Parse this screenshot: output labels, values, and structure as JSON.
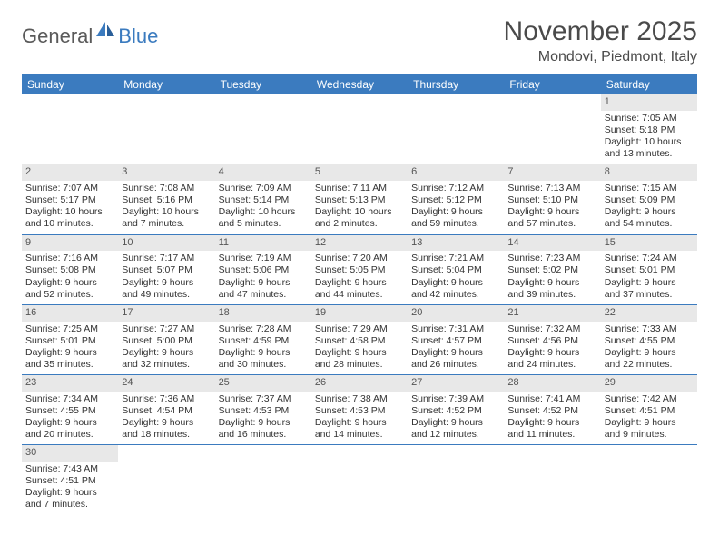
{
  "logo": {
    "text1": "General",
    "text2": "Blue"
  },
  "title": "November 2025",
  "location": "Mondovi, Piedmont, Italy",
  "colors": {
    "header_bg": "#3b7bbf",
    "header_text": "#ffffff",
    "daynum_bg": "#e8e8e8",
    "daynum_text": "#555555",
    "body_text": "#333333",
    "title_text": "#4a4a4a"
  },
  "weekdays": [
    "Sunday",
    "Monday",
    "Tuesday",
    "Wednesday",
    "Thursday",
    "Friday",
    "Saturday"
  ],
  "weeks": [
    [
      {
        "empty": true
      },
      {
        "empty": true
      },
      {
        "empty": true
      },
      {
        "empty": true
      },
      {
        "empty": true
      },
      {
        "empty": true
      },
      {
        "day": "1",
        "sunrise": "Sunrise: 7:05 AM",
        "sunset": "Sunset: 5:18 PM",
        "daylight1": "Daylight: 10 hours",
        "daylight2": "and 13 minutes."
      }
    ],
    [
      {
        "day": "2",
        "sunrise": "Sunrise: 7:07 AM",
        "sunset": "Sunset: 5:17 PM",
        "daylight1": "Daylight: 10 hours",
        "daylight2": "and 10 minutes."
      },
      {
        "day": "3",
        "sunrise": "Sunrise: 7:08 AM",
        "sunset": "Sunset: 5:16 PM",
        "daylight1": "Daylight: 10 hours",
        "daylight2": "and 7 minutes."
      },
      {
        "day": "4",
        "sunrise": "Sunrise: 7:09 AM",
        "sunset": "Sunset: 5:14 PM",
        "daylight1": "Daylight: 10 hours",
        "daylight2": "and 5 minutes."
      },
      {
        "day": "5",
        "sunrise": "Sunrise: 7:11 AM",
        "sunset": "Sunset: 5:13 PM",
        "daylight1": "Daylight: 10 hours",
        "daylight2": "and 2 minutes."
      },
      {
        "day": "6",
        "sunrise": "Sunrise: 7:12 AM",
        "sunset": "Sunset: 5:12 PM",
        "daylight1": "Daylight: 9 hours",
        "daylight2": "and 59 minutes."
      },
      {
        "day": "7",
        "sunrise": "Sunrise: 7:13 AM",
        "sunset": "Sunset: 5:10 PM",
        "daylight1": "Daylight: 9 hours",
        "daylight2": "and 57 minutes."
      },
      {
        "day": "8",
        "sunrise": "Sunrise: 7:15 AM",
        "sunset": "Sunset: 5:09 PM",
        "daylight1": "Daylight: 9 hours",
        "daylight2": "and 54 minutes."
      }
    ],
    [
      {
        "day": "9",
        "sunrise": "Sunrise: 7:16 AM",
        "sunset": "Sunset: 5:08 PM",
        "daylight1": "Daylight: 9 hours",
        "daylight2": "and 52 minutes."
      },
      {
        "day": "10",
        "sunrise": "Sunrise: 7:17 AM",
        "sunset": "Sunset: 5:07 PM",
        "daylight1": "Daylight: 9 hours",
        "daylight2": "and 49 minutes."
      },
      {
        "day": "11",
        "sunrise": "Sunrise: 7:19 AM",
        "sunset": "Sunset: 5:06 PM",
        "daylight1": "Daylight: 9 hours",
        "daylight2": "and 47 minutes."
      },
      {
        "day": "12",
        "sunrise": "Sunrise: 7:20 AM",
        "sunset": "Sunset: 5:05 PM",
        "daylight1": "Daylight: 9 hours",
        "daylight2": "and 44 minutes."
      },
      {
        "day": "13",
        "sunrise": "Sunrise: 7:21 AM",
        "sunset": "Sunset: 5:04 PM",
        "daylight1": "Daylight: 9 hours",
        "daylight2": "and 42 minutes."
      },
      {
        "day": "14",
        "sunrise": "Sunrise: 7:23 AM",
        "sunset": "Sunset: 5:02 PM",
        "daylight1": "Daylight: 9 hours",
        "daylight2": "and 39 minutes."
      },
      {
        "day": "15",
        "sunrise": "Sunrise: 7:24 AM",
        "sunset": "Sunset: 5:01 PM",
        "daylight1": "Daylight: 9 hours",
        "daylight2": "and 37 minutes."
      }
    ],
    [
      {
        "day": "16",
        "sunrise": "Sunrise: 7:25 AM",
        "sunset": "Sunset: 5:01 PM",
        "daylight1": "Daylight: 9 hours",
        "daylight2": "and 35 minutes."
      },
      {
        "day": "17",
        "sunrise": "Sunrise: 7:27 AM",
        "sunset": "Sunset: 5:00 PM",
        "daylight1": "Daylight: 9 hours",
        "daylight2": "and 32 minutes."
      },
      {
        "day": "18",
        "sunrise": "Sunrise: 7:28 AM",
        "sunset": "Sunset: 4:59 PM",
        "daylight1": "Daylight: 9 hours",
        "daylight2": "and 30 minutes."
      },
      {
        "day": "19",
        "sunrise": "Sunrise: 7:29 AM",
        "sunset": "Sunset: 4:58 PM",
        "daylight1": "Daylight: 9 hours",
        "daylight2": "and 28 minutes."
      },
      {
        "day": "20",
        "sunrise": "Sunrise: 7:31 AM",
        "sunset": "Sunset: 4:57 PM",
        "daylight1": "Daylight: 9 hours",
        "daylight2": "and 26 minutes."
      },
      {
        "day": "21",
        "sunrise": "Sunrise: 7:32 AM",
        "sunset": "Sunset: 4:56 PM",
        "daylight1": "Daylight: 9 hours",
        "daylight2": "and 24 minutes."
      },
      {
        "day": "22",
        "sunrise": "Sunrise: 7:33 AM",
        "sunset": "Sunset: 4:55 PM",
        "daylight1": "Daylight: 9 hours",
        "daylight2": "and 22 minutes."
      }
    ],
    [
      {
        "day": "23",
        "sunrise": "Sunrise: 7:34 AM",
        "sunset": "Sunset: 4:55 PM",
        "daylight1": "Daylight: 9 hours",
        "daylight2": "and 20 minutes."
      },
      {
        "day": "24",
        "sunrise": "Sunrise: 7:36 AM",
        "sunset": "Sunset: 4:54 PM",
        "daylight1": "Daylight: 9 hours",
        "daylight2": "and 18 minutes."
      },
      {
        "day": "25",
        "sunrise": "Sunrise: 7:37 AM",
        "sunset": "Sunset: 4:53 PM",
        "daylight1": "Daylight: 9 hours",
        "daylight2": "and 16 minutes."
      },
      {
        "day": "26",
        "sunrise": "Sunrise: 7:38 AM",
        "sunset": "Sunset: 4:53 PM",
        "daylight1": "Daylight: 9 hours",
        "daylight2": "and 14 minutes."
      },
      {
        "day": "27",
        "sunrise": "Sunrise: 7:39 AM",
        "sunset": "Sunset: 4:52 PM",
        "daylight1": "Daylight: 9 hours",
        "daylight2": "and 12 minutes."
      },
      {
        "day": "28",
        "sunrise": "Sunrise: 7:41 AM",
        "sunset": "Sunset: 4:52 PM",
        "daylight1": "Daylight: 9 hours",
        "daylight2": "and 11 minutes."
      },
      {
        "day": "29",
        "sunrise": "Sunrise: 7:42 AM",
        "sunset": "Sunset: 4:51 PM",
        "daylight1": "Daylight: 9 hours",
        "daylight2": "and 9 minutes."
      }
    ],
    [
      {
        "day": "30",
        "sunrise": "Sunrise: 7:43 AM",
        "sunset": "Sunset: 4:51 PM",
        "daylight1": "Daylight: 9 hours",
        "daylight2": "and 7 minutes."
      },
      {
        "empty": true
      },
      {
        "empty": true
      },
      {
        "empty": true
      },
      {
        "empty": true
      },
      {
        "empty": true
      },
      {
        "empty": true
      }
    ]
  ]
}
